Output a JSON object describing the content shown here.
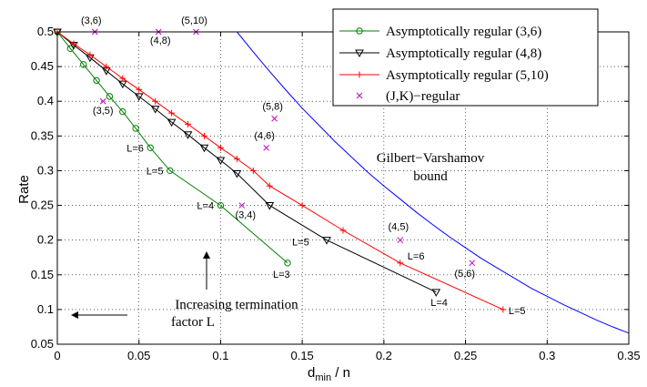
{
  "chart_data": {
    "type": "line",
    "xlabel_main": "d",
    "xlabel_sub": "min",
    "xlabel_tail": " / n",
    "ylabel": "Rate",
    "xlim": [
      0,
      0.35
    ],
    "ylim": [
      0.05,
      0.5
    ],
    "xticks": [
      0,
      0.05,
      0.1,
      0.15,
      0.2,
      0.25,
      0.3,
      0.35
    ],
    "xtick_labels": [
      "0",
      "0.05",
      "0.1",
      "0.15",
      "0.2",
      "0.25",
      "0.3",
      "0.35"
    ],
    "yticks": [
      0.05,
      0.1,
      0.15,
      0.2,
      0.25,
      0.3,
      0.35,
      0.4,
      0.45,
      0.5
    ],
    "ytick_labels": [
      "0.05",
      "0.1",
      "0.15",
      "0.2",
      "0.25",
      "0.3",
      "0.35",
      "0.4",
      "0.45",
      "0.5"
    ],
    "grid": true,
    "legend_position": "top-right",
    "series": [
      {
        "name": "Asymptotically regular (3,6)",
        "color": "#008000",
        "marker": "circle",
        "points": [
          [
            0,
            0.5
          ],
          [
            0.008,
            0.476
          ],
          [
            0.016,
            0.453
          ],
          [
            0.024,
            0.43
          ],
          [
            0.032,
            0.407
          ],
          [
            0.04,
            0.385
          ],
          [
            0.048,
            0.361
          ],
          [
            0.057,
            0.333
          ],
          [
            0.069,
            0.3
          ],
          [
            0.1,
            0.25
          ],
          [
            0.141,
            0.167
          ]
        ],
        "labeled_points": [
          [
            0.057,
            0.333,
            "L=6"
          ],
          [
            0.069,
            0.3,
            "L=5"
          ],
          [
            0.1,
            0.25,
            "L=4"
          ],
          [
            0.141,
            0.167,
            "L=3"
          ]
        ]
      },
      {
        "name": "Asymptotically regular (4,8)",
        "color": "#000000",
        "marker": "triangle-down",
        "points": [
          [
            0,
            0.5
          ],
          [
            0.01,
            0.481
          ],
          [
            0.02,
            0.463
          ],
          [
            0.03,
            0.444
          ],
          [
            0.04,
            0.425
          ],
          [
            0.05,
            0.407
          ],
          [
            0.06,
            0.389
          ],
          [
            0.07,
            0.37
          ],
          [
            0.08,
            0.352
          ],
          [
            0.09,
            0.333
          ],
          [
            0.1,
            0.315
          ],
          [
            0.11,
            0.296
          ],
          [
            0.13,
            0.25
          ],
          [
            0.165,
            0.2
          ],
          [
            0.232,
            0.125
          ]
        ],
        "labeled_points": [
          [
            0.165,
            0.2,
            "L=5"
          ],
          [
            0.232,
            0.125,
            "L=4"
          ]
        ]
      },
      {
        "name": "Asymptotically regular (5,10)",
        "color": "#ff0000",
        "marker": "plus",
        "points": [
          [
            0,
            0.5
          ],
          [
            0.01,
            0.483
          ],
          [
            0.02,
            0.467
          ],
          [
            0.03,
            0.45
          ],
          [
            0.04,
            0.433
          ],
          [
            0.05,
            0.417
          ],
          [
            0.06,
            0.4
          ],
          [
            0.07,
            0.383
          ],
          [
            0.08,
            0.367
          ],
          [
            0.09,
            0.35
          ],
          [
            0.1,
            0.333
          ],
          [
            0.11,
            0.317
          ],
          [
            0.12,
            0.3
          ],
          [
            0.13,
            0.278
          ],
          [
            0.15,
            0.25
          ],
          [
            0.175,
            0.214
          ],
          [
            0.21,
            0.167
          ],
          [
            0.273,
            0.1
          ]
        ],
        "labeled_points": [
          [
            0.21,
            0.167,
            "L=6"
          ],
          [
            0.273,
            0.1,
            "L=5"
          ]
        ]
      },
      {
        "name": "(J,K)−regular",
        "color": "#bf00bf",
        "marker": "x",
        "line": false,
        "points": [
          [
            0.023,
            0.5,
            "(3,6)"
          ],
          [
            0.062,
            0.5,
            "(4,8)"
          ],
          [
            0.085,
            0.5,
            "(5,10)"
          ],
          [
            0.028,
            0.4,
            "(3,5)"
          ],
          [
            0.133,
            0.375,
            "(5,8)"
          ],
          [
            0.128,
            0.333,
            "(4,6)"
          ],
          [
            0.113,
            0.25,
            "(3,4)"
          ],
          [
            0.21,
            0.2,
            "(4,5)"
          ],
          [
            0.254,
            0.167,
            "(5,6)"
          ]
        ]
      },
      {
        "name": "Gilbert−Varshamov bound",
        "color": "#0000ff",
        "marker": "none",
        "legend": false,
        "points": [
          [
            0.11,
            0.5
          ],
          [
            0.12,
            0.471
          ],
          [
            0.13,
            0.443
          ],
          [
            0.14,
            0.416
          ],
          [
            0.15,
            0.39
          ],
          [
            0.16,
            0.366
          ],
          [
            0.17,
            0.342
          ],
          [
            0.18,
            0.32
          ],
          [
            0.19,
            0.298
          ],
          [
            0.2,
            0.278
          ],
          [
            0.21,
            0.259
          ],
          [
            0.22,
            0.24
          ],
          [
            0.23,
            0.222
          ],
          [
            0.24,
            0.205
          ],
          [
            0.25,
            0.189
          ],
          [
            0.26,
            0.173
          ],
          [
            0.27,
            0.159
          ],
          [
            0.28,
            0.145
          ],
          [
            0.29,
            0.131
          ],
          [
            0.3,
            0.119
          ],
          [
            0.31,
            0.107
          ],
          [
            0.32,
            0.096
          ],
          [
            0.33,
            0.085
          ],
          [
            0.34,
            0.075
          ],
          [
            0.35,
            0.066
          ]
        ]
      }
    ],
    "annotations": {
      "gv_line1": "Gilbert−Varshamov",
      "gv_line2": "bound",
      "term_line1": "Increasing termination",
      "term_line2": "factor L"
    }
  }
}
